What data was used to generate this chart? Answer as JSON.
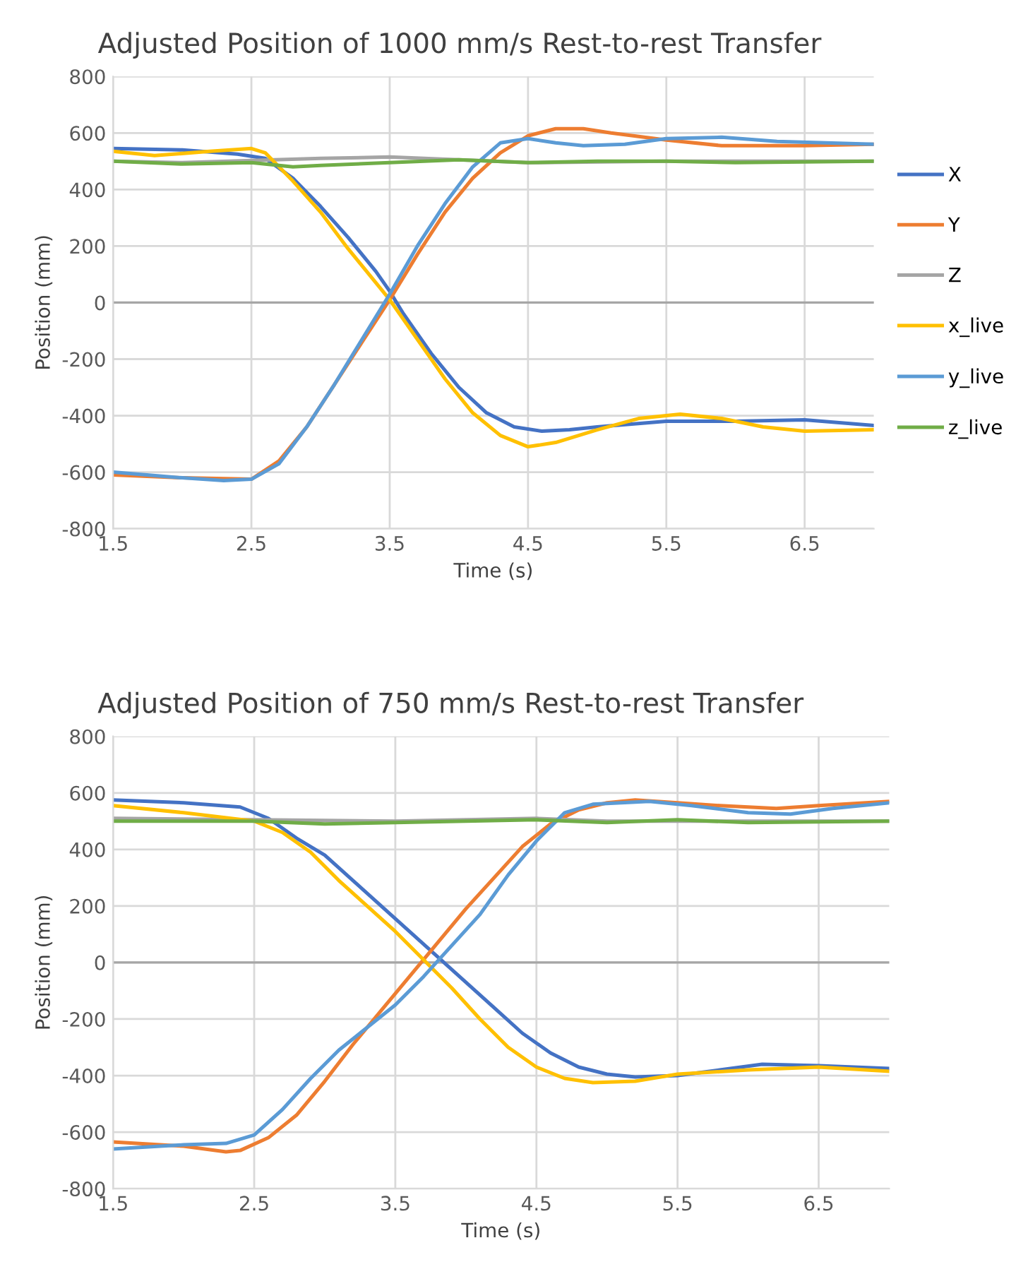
{
  "chart_data": [
    {
      "type": "line",
      "title": "Adjusted Position of 1000 mm/s Rest-to-rest Transfer",
      "xlabel": "Time (s)",
      "ylabel": "Position (mm)",
      "xlim": [
        1.5,
        7.0
      ],
      "xticks": [
        1.5,
        2.5,
        3.5,
        4.5,
        5.5,
        6.5
      ],
      "ylim": [
        -800,
        800
      ],
      "yticks": [
        -800,
        -600,
        -400,
        -200,
        0,
        200,
        400,
        600,
        800
      ],
      "grid": true,
      "legend": "right",
      "ref_lines": [
        {
          "axis": "y",
          "value": 0,
          "color": "#a6a6a6"
        }
      ],
      "series": [
        {
          "name": "X",
          "color": "#4472c4",
          "x": [
            1.5,
            2.0,
            2.4,
            2.6,
            2.8,
            3.0,
            3.2,
            3.4,
            3.5,
            3.6,
            3.8,
            4.0,
            4.2,
            4.4,
            4.6,
            4.8,
            5.0,
            5.5,
            6.0,
            6.5,
            7.0
          ],
          "values": [
            545,
            540,
            525,
            510,
            440,
            340,
            230,
            110,
            40,
            -40,
            -180,
            -300,
            -390,
            -440,
            -455,
            -450,
            -440,
            -420,
            -420,
            -415,
            -435
          ]
        },
        {
          "name": "Y",
          "color": "#ed7d31",
          "x": [
            1.5,
            2.0,
            2.5,
            2.7,
            2.9,
            3.1,
            3.3,
            3.5,
            3.7,
            3.9,
            4.1,
            4.3,
            4.5,
            4.7,
            4.9,
            5.1,
            5.5,
            5.9,
            6.5,
            7.0
          ],
          "values": [
            -610,
            -620,
            -625,
            -560,
            -440,
            -290,
            -140,
            10,
            170,
            320,
            440,
            530,
            590,
            615,
            615,
            600,
            575,
            555,
            555,
            560
          ]
        },
        {
          "name": "Z",
          "color": "#a5a5a5",
          "x": [
            1.5,
            2.0,
            3.0,
            3.5,
            4.0,
            4.5,
            5.5,
            7.0
          ],
          "values": [
            500,
            495,
            510,
            515,
            505,
            495,
            500,
            500
          ]
        },
        {
          "name": "x_live",
          "color": "#ffc000",
          "x": [
            1.5,
            1.8,
            2.2,
            2.5,
            2.6,
            2.8,
            3.0,
            3.2,
            3.4,
            3.5,
            3.7,
            3.9,
            4.1,
            4.3,
            4.5,
            4.7,
            5.0,
            5.3,
            5.6,
            5.9,
            6.2,
            6.5,
            7.0
          ],
          "values": [
            535,
            520,
            535,
            545,
            530,
            430,
            320,
            190,
            70,
            10,
            -130,
            -270,
            -390,
            -470,
            -510,
            -495,
            -450,
            -410,
            -395,
            -410,
            -440,
            -455,
            -450
          ]
        },
        {
          "name": "y_live",
          "color": "#5b9bd5",
          "x": [
            1.5,
            2.0,
            2.3,
            2.5,
            2.7,
            2.9,
            3.1,
            3.3,
            3.5,
            3.7,
            3.9,
            4.1,
            4.3,
            4.5,
            4.7,
            4.9,
            5.2,
            5.5,
            5.9,
            6.3,
            7.0
          ],
          "values": [
            -600,
            -620,
            -630,
            -625,
            -570,
            -440,
            -290,
            -130,
            30,
            200,
            350,
            480,
            565,
            580,
            565,
            555,
            560,
            580,
            585,
            570,
            560
          ]
        },
        {
          "name": "z_live",
          "color": "#70ad47",
          "x": [
            1.5,
            2.0,
            2.5,
            2.8,
            3.0,
            3.5,
            4.0,
            4.5,
            5.0,
            5.5,
            6.0,
            7.0
          ],
          "values": [
            500,
            490,
            495,
            480,
            485,
            495,
            505,
            495,
            500,
            500,
            495,
            500
          ]
        }
      ]
    },
    {
      "type": "line",
      "title": "Adjusted Position of 750 mm/s Rest-to-rest Transfer",
      "xlabel": "Time (s)",
      "ylabel": "Position (mm)",
      "xlim": [
        1.5,
        7.0
      ],
      "xticks": [
        1.5,
        2.5,
        3.5,
        4.5,
        5.5,
        6.5
      ],
      "ylim": [
        -800,
        800
      ],
      "yticks": [
        -800,
        -600,
        -400,
        -200,
        0,
        200,
        400,
        600,
        800
      ],
      "grid": true,
      "ref_lines": [
        {
          "axis": "y",
          "value": 0,
          "color": "#a6a6a6"
        }
      ],
      "series": [
        {
          "color": "#4472c4",
          "x": [
            1.5,
            2.0,
            2.4,
            2.6,
            2.8,
            3.0,
            3.2,
            3.4,
            3.6,
            3.8,
            4.0,
            4.2,
            4.4,
            4.6,
            4.8,
            5.0,
            5.2,
            5.5,
            5.8,
            6.1,
            6.5,
            7.0
          ],
          "values": [
            575,
            565,
            550,
            510,
            440,
            380,
            290,
            200,
            110,
            20,
            -70,
            -160,
            -250,
            -320,
            -370,
            -395,
            -405,
            -400,
            -380,
            -360,
            -365,
            -375
          ]
        },
        {
          "color": "#ed7d31",
          "x": [
            1.5,
            2.0,
            2.3,
            2.4,
            2.6,
            2.8,
            3.0,
            3.2,
            3.4,
            3.6,
            3.8,
            4.0,
            4.2,
            4.4,
            4.6,
            4.8,
            5.0,
            5.2,
            5.5,
            5.8,
            6.2,
            6.5,
            7.0
          ],
          "values": [
            -635,
            -650,
            -670,
            -665,
            -620,
            -540,
            -420,
            -290,
            -170,
            -50,
            70,
            190,
            300,
            410,
            490,
            540,
            565,
            575,
            565,
            555,
            545,
            555,
            570
          ]
        },
        {
          "color": "#a5a5a5",
          "x": [
            1.5,
            2.5,
            3.5,
            4.5,
            5.0,
            7.0
          ],
          "values": [
            510,
            505,
            500,
            510,
            500,
            500
          ]
        },
        {
          "color": "#ffc000",
          "x": [
            1.5,
            2.0,
            2.5,
            2.7,
            2.9,
            3.1,
            3.3,
            3.5,
            3.7,
            3.9,
            4.1,
            4.3,
            4.5,
            4.7,
            4.9,
            5.2,
            5.5,
            6.0,
            6.5,
            7.0
          ],
          "values": [
            555,
            530,
            500,
            460,
            390,
            290,
            200,
            110,
            10,
            -90,
            -200,
            -300,
            -370,
            -410,
            -425,
            -420,
            -395,
            -380,
            -370,
            -385
          ]
        },
        {
          "color": "#5b9bd5",
          "x": [
            1.5,
            2.0,
            2.3,
            2.5,
            2.7,
            2.9,
            3.1,
            3.3,
            3.5,
            3.7,
            3.9,
            4.1,
            4.3,
            4.5,
            4.7,
            4.9,
            5.3,
            5.6,
            6.0,
            6.3,
            6.6,
            7.0
          ],
          "values": [
            -660,
            -645,
            -640,
            -610,
            -520,
            -410,
            -310,
            -230,
            -150,
            -50,
            60,
            170,
            310,
            430,
            530,
            560,
            570,
            555,
            530,
            525,
            545,
            565
          ]
        },
        {
          "color": "#70ad47",
          "x": [
            1.5,
            2.0,
            2.5,
            3.0,
            3.5,
            4.0,
            4.5,
            5.0,
            5.5,
            6.0,
            7.0
          ],
          "values": [
            500,
            500,
            500,
            490,
            495,
            500,
            505,
            495,
            505,
            495,
            500
          ]
        }
      ]
    }
  ]
}
